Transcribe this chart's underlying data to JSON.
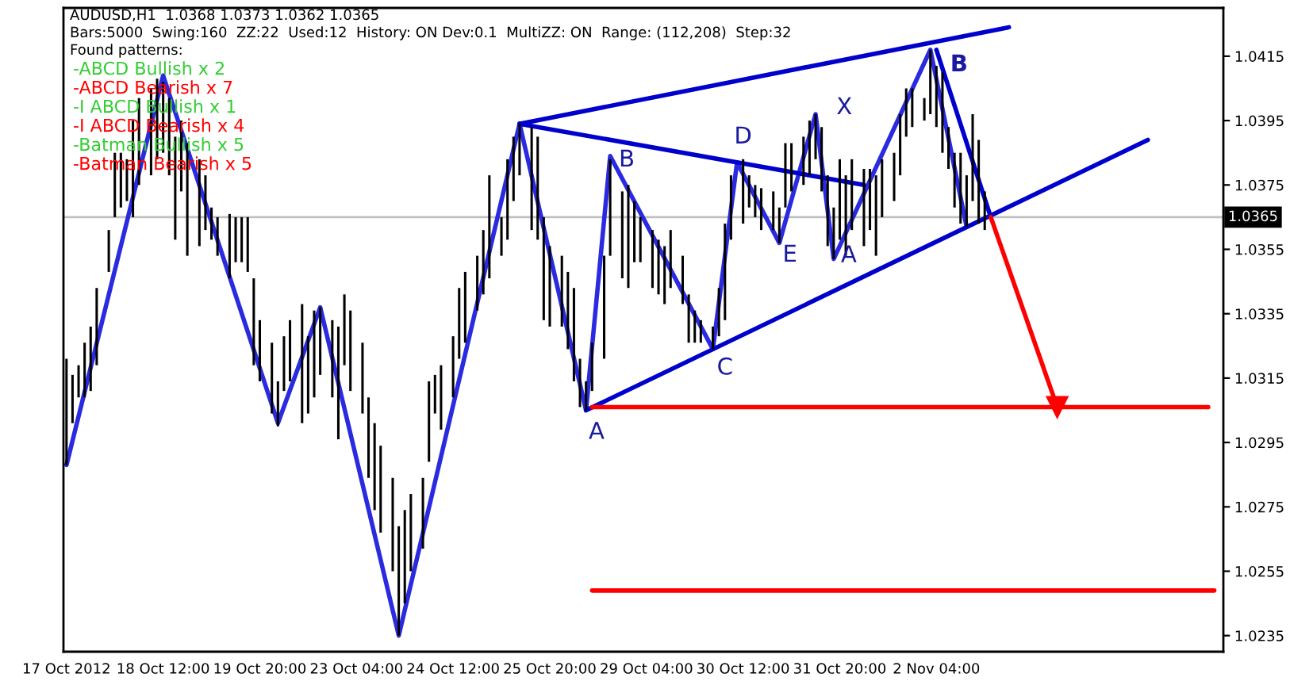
{
  "chart_data": {
    "type": "bar",
    "annotations": [
      "AUDUSD,H1  1.0368 1.0373 1.0362 1.0365",
      "Bars:5000  Swing:160  ZZ:22  Used:12  History: ON Dev:0.1  MultiZZ: ON  Range: (112,208)  Step:32",
      "Found patterns:",
      "-ABCD Bullish x 2",
      "-ABCD Bearish x 7",
      "-I ABCD Bullish x 1",
      "-I ABCD Bearish x 4",
      "-Batman Bullish x 5",
      "-Batman Bearish x 5",
      {
        "text": "A",
        "y": 1.0305
      },
      "B",
      {
        "text": "C",
        "y": 1.0324
      },
      {
        "text": "D",
        "y": 1.0382
      },
      "E",
      "X",
      {
        "text": "A",
        "y": 1.0352
      },
      "B"
    ],
    "categories": [
      "17 Oct 2012",
      null,
      null,
      null,
      null,
      null,
      null,
      null,
      null,
      null,
      null,
      null,
      null,
      null,
      null,
      null,
      "18 Oct 12:00",
      null,
      null,
      null,
      null,
      null,
      null,
      null,
      null,
      null,
      null,
      null,
      null,
      null,
      null,
      null,
      "19 Oct 20:00",
      null,
      null,
      null,
      null,
      null,
      null,
      null,
      null,
      null,
      null,
      null,
      null,
      null,
      null,
      null,
      "23 Oct 04:00",
      null,
      null,
      null,
      null,
      null,
      null,
      null,
      null,
      null,
      null,
      null,
      null,
      null,
      null,
      null,
      "24 Oct 12:00",
      null,
      null,
      null,
      null,
      null,
      null,
      null,
      null,
      null,
      null,
      null,
      null,
      null,
      null,
      null,
      "25 Oct 20:00",
      null,
      null,
      null,
      null,
      null,
      null,
      null,
      null,
      null,
      null,
      null,
      null,
      null,
      null,
      null,
      "29 Oct 04:00",
      null,
      null,
      null,
      null,
      null,
      null,
      null,
      null,
      null,
      null,
      null,
      null,
      null,
      null,
      null,
      "30 Oct 12:00",
      null,
      null,
      null,
      null,
      null,
      null,
      null,
      null,
      null,
      null,
      null,
      null,
      null,
      null,
      null,
      "31 Oct 20:00",
      null,
      null,
      null,
      null,
      null,
      null,
      null,
      null,
      null,
      null,
      null,
      null,
      null,
      null,
      null,
      "2 Nov 04:00",
      null,
      null,
      null,
      null,
      null,
      null,
      null,
      null,
      null,
      null,
      null,
      null,
      null,
      null,
      null,
      null,
      null,
      null,
      null,
      null,
      null,
      null,
      null,
      null,
      null,
      null,
      null,
      null,
      null,
      null,
      null,
      null,
      null,
      null,
      null,
      null,
      null,
      null,
      null,
      null,
      null,
      null,
      null,
      null,
      null,
      null,
      null
    ],
    "ylim": [
      1.023,
      1.043
    ],
    "yticks": [
      1.0235,
      1.0255,
      1.0275,
      1.0295,
      1.0315,
      1.0335,
      1.0355,
      1.0375,
      1.0395,
      1.0415
    ],
    "ref_lines": [
      {
        "axis": "y",
        "value": 1.0365,
        "label": "1.0365",
        "color": "#c0c0c0"
      }
    ],
    "series": [
      {
        "color": "#000000",
        "base": [
          1.0288,
          1.0301,
          1.0309,
          1.0309,
          1.0311,
          1.0319,
          null,
          1.0348,
          1.0365,
          1.0368,
          1.037,
          1.0365,
          1.0375,
          null,
          1.0378,
          1.0383,
          1.0385,
          1.0378,
          1.0358,
          1.0373,
          1.0353,
          null,
          1.0356,
          1.0361,
          1.0358,
          1.0353,
          null,
          1.0346,
          1.0351,
          1.0351,
          1.0348,
          1.0319,
          1.0314,
          null,
          1.0304,
          1.03,
          1.0311,
          1.0314,
          null,
          1.0301,
          1.0304,
          1.0309,
          1.0316,
          null,
          1.0309,
          1.0296,
          1.0319,
          1.0311,
          null,
          1.0304,
          1.0284,
          1.0274,
          1.0267,
          null,
          1.0255,
          1.0235,
          1.0245,
          1.0255,
          null,
          1.0262,
          1.0289,
          1.0304,
          1.0299,
          null,
          1.0309,
          1.0321,
          1.0326,
          null,
          1.0336,
          1.0341,
          1.0346,
          null,
          1.0353,
          1.0358,
          1.037,
          1.0378,
          null,
          1.0361,
          1.0358,
          1.0333,
          1.0331,
          null,
          1.0331,
          1.0324,
          1.0314,
          1.0306,
          1.0305,
          1.0311,
          null,
          1.0321,
          1.0353,
          null,
          1.0346,
          1.0343,
          1.0351,
          1.0351,
          null,
          1.0343,
          1.0341,
          1.0338,
          1.0343,
          null,
          1.0338,
          1.0326,
          1.0326,
          1.0326,
          null,
          1.0324,
          1.0328,
          1.0333,
          1.0358,
          null,
          1.0363,
          1.0368,
          1.0365,
          1.0361,
          null,
          1.0361,
          1.0357,
          1.0368,
          1.0373,
          null,
          1.0375,
          1.0378,
          1.0383,
          1.0373,
          1.0356,
          1.0352,
          1.0358,
          1.0353,
          1.0361,
          null,
          1.0356,
          1.0361,
          1.0353,
          1.0365,
          null,
          1.037,
          1.0378,
          1.039,
          1.0393,
          null,
          1.0395,
          1.0397,
          1.0393,
          1.0385,
          1.038,
          1.0368,
          1.0363,
          1.0362,
          1.037,
          1.0363,
          1.0361,
          null,
          null,
          null,
          null,
          null,
          null,
          null,
          null,
          null,
          null,
          null,
          null,
          null,
          null,
          null,
          null,
          null,
          null,
          null,
          null,
          null,
          null,
          null,
          null,
          null,
          null,
          null,
          null,
          null,
          null,
          null,
          null,
          null,
          null,
          null,
          null,
          null,
          null,
          null
        ],
        "values": [
          0.0033,
          0.0015,
          0.001,
          0.0017,
          0.002,
          0.0024,
          null,
          0.0013,
          0.002,
          0.0017,
          0.0013,
          0.003,
          0.0027,
          null,
          0.0027,
          0.0025,
          0.0022,
          0.0024,
          0.0032,
          0.0022,
          0.0035,
          null,
          0.0027,
          0.0017,
          0.001,
          0.0012,
          null,
          0.002,
          0.0014,
          0.0014,
          0.0017,
          0.0027,
          0.0019,
          null,
          0.0022,
          0.0014,
          0.0017,
          0.0019,
          null,
          0.0037,
          0.0024,
          0.0027,
          0.0021,
          null,
          0.0024,
          0.0035,
          0.0022,
          0.0025,
          null,
          0.0022,
          0.0025,
          0.0027,
          0.0027,
          null,
          0.0029,
          0.0034,
          0.0029,
          0.0024,
          null,
          0.0022,
          0.0025,
          0.0012,
          0.002,
          null,
          0.0019,
          0.0022,
          0.0022,
          null,
          0.0017,
          0.002,
          0.0032,
          null,
          0.0012,
          0.0025,
          0.002,
          0.0016,
          null,
          0.0032,
          0.0032,
          0.0032,
          0.0025,
          null,
          0.0022,
          0.0024,
          0.0029,
          0.0015,
          0.0009,
          0.0015,
          null,
          0.0032,
          0.003,
          null,
          0.0027,
          0.0032,
          0.0019,
          0.0014,
          null,
          0.0018,
          0.0017,
          0.0018,
          0.0018,
          null,
          0.0015,
          0.0015,
          0.001,
          0.0007,
          null,
          0.0007,
          0.0015,
          0.003,
          0.002,
          null,
          0.002,
          0.001,
          0.001,
          0.0013,
          null,
          0.0012,
          0.0011,
          0.002,
          0.0015,
          null,
          0.0015,
          0.0017,
          0.0014,
          0.002,
          0.0022,
          0.0016,
          0.0025,
          0.0025,
          0.0022,
          null,
          0.0024,
          0.0019,
          0.0025,
          0.0018,
          null,
          0.0015,
          0.0019,
          0.0015,
          0.0012,
          null,
          0.0007,
          0.002,
          0.0019,
          0.0025,
          0.0013,
          0.0017,
          0.0022,
          0.0016,
          0.0027,
          0.0026,
          0.0012,
          null,
          null,
          null,
          null,
          null,
          null,
          null,
          null,
          null,
          null,
          null,
          null,
          null,
          null,
          null,
          null,
          null,
          null,
          null,
          null,
          null,
          null,
          null,
          null,
          null,
          null,
          null,
          null,
          null,
          null,
          null,
          null,
          null,
          null,
          null,
          null,
          null,
          null,
          null
        ]
      },
      {
        "type": "line",
        "color": "#2a2ae0",
        "values": [
          1.0288,
          null,
          null,
          null,
          null,
          null,
          null,
          null,
          null,
          null,
          null,
          null,
          null,
          null,
          null,
          null,
          1.0409,
          null,
          null,
          null,
          null,
          null,
          null,
          null,
          null,
          null,
          null,
          null,
          null,
          null,
          null,
          null,
          null,
          null,
          null,
          1.0301,
          null,
          null,
          null,
          null,
          null,
          null,
          1.0337,
          null,
          null,
          null,
          null,
          null,
          null,
          null,
          null,
          null,
          null,
          null,
          null,
          1.0235,
          null,
          null,
          null,
          null,
          null,
          null,
          null,
          null,
          null,
          null,
          null,
          null,
          null,
          null,
          null,
          null,
          null,
          null,
          null,
          1.0394,
          null,
          null,
          null,
          null,
          null,
          null,
          null,
          null,
          null,
          null,
          1.0305,
          null,
          null,
          null,
          1.0384,
          null,
          null,
          null,
          null,
          null,
          null,
          null,
          null,
          null,
          null,
          null,
          null,
          null,
          null,
          null,
          null,
          1.0324,
          null,
          null,
          null,
          1.0382,
          null,
          null,
          null,
          null,
          null,
          null,
          1.0357,
          null,
          null,
          null,
          null,
          null,
          1.0397,
          null,
          null,
          1.0352,
          null,
          null,
          null,
          null,
          null,
          null,
          null,
          null,
          null,
          null,
          null,
          null,
          null,
          null,
          null,
          1.0417,
          null,
          null,
          null,
          null,
          null,
          1.0362,
          null,
          null,
          null,
          null,
          null,
          null,
          null,
          null,
          null,
          null,
          null,
          null,
          null,
          null,
          null,
          null,
          null,
          null,
          null,
          null,
          null,
          null,
          null,
          null,
          null,
          null,
          null,
          null,
          null,
          null,
          null,
          null,
          null,
          null,
          null,
          null,
          null,
          null,
          null,
          null,
          null,
          null
        ]
      },
      {
        "type": "line",
        "color": "#0000cc",
        "values": [
          null,
          null,
          null,
          null,
          null,
          null,
          null,
          null,
          null,
          null,
          null,
          null,
          null,
          null,
          null,
          null,
          null,
          null,
          null,
          null,
          null,
          null,
          null,
          null,
          null,
          null,
          null,
          null,
          null,
          null,
          null,
          null,
          null,
          null,
          null,
          null,
          null,
          null,
          null,
          null,
          null,
          null,
          null,
          null,
          null,
          null,
          null,
          null,
          null,
          null,
          null,
          null,
          null,
          null,
          null,
          null,
          null,
          null,
          null,
          null,
          null,
          null,
          null,
          null,
          null,
          null,
          null,
          null,
          null,
          null,
          null,
          null,
          null,
          null,
          null,
          1.0394,
          null,
          null,
          null,
          null,
          null,
          null,
          null,
          null,
          null,
          null,
          null,
          null,
          null,
          null,
          null,
          null,
          null,
          null,
          null,
          null,
          null,
          null,
          null,
          null,
          null,
          null,
          null,
          null,
          null,
          null,
          null,
          null,
          null,
          null,
          null,
          null,
          null,
          null,
          null,
          null,
          null,
          null,
          null,
          null,
          null,
          null,
          null,
          null,
          null,
          null,
          null,
          null,
          null,
          null,
          null,
          null,
          null,
          null,
          null,
          null,
          null,
          null,
          null,
          null,
          null,
          null,
          null,
          null,
          null,
          null,
          null,
          null,
          null,
          null,
          null,
          null,
          null,
          null,
          null,
          null,
          1.0424,
          null,
          null,
          null,
          null,
          null,
          null,
          null,
          null,
          null,
          null,
          null,
          null,
          null,
          null,
          null,
          null,
          null,
          null,
          null,
          null,
          null,
          null,
          null,
          null,
          null,
          null,
          null,
          null,
          null,
          null,
          null,
          null,
          null,
          null,
          null
        ]
      },
      {
        "type": "line",
        "color": "#0000cc",
        "values": [
          null,
          null,
          null,
          null,
          null,
          null,
          null,
          null,
          null,
          null,
          null,
          null,
          null,
          null,
          null,
          null,
          null,
          null,
          null,
          null,
          null,
          null,
          null,
          null,
          null,
          null,
          null,
          null,
          null,
          null,
          null,
          null,
          null,
          null,
          null,
          null,
          null,
          null,
          null,
          null,
          null,
          null,
          null,
          null,
          null,
          null,
          null,
          null,
          null,
          null,
          null,
          null,
          null,
          null,
          null,
          null,
          null,
          null,
          null,
          null,
          null,
          null,
          null,
          null,
          null,
          null,
          null,
          null,
          null,
          null,
          null,
          null,
          null,
          null,
          null,
          1.0394,
          null,
          null,
          null,
          null,
          null,
          null,
          null,
          null,
          null,
          null,
          null,
          null,
          null,
          null,
          null,
          null,
          null,
          null,
          null,
          null,
          null,
          null,
          null,
          null,
          null,
          null,
          null,
          null,
          null,
          null,
          null,
          null,
          null,
          null,
          null,
          null,
          null,
          null,
          null,
          null,
          null,
          null,
          null,
          null,
          null,
          null,
          null,
          null,
          null,
          null,
          null,
          null,
          null,
          null,
          null,
          null,
          1.0375,
          null,
          null,
          null,
          null,
          null,
          null,
          null,
          null,
          null,
          null,
          null,
          null,
          null,
          null,
          null,
          null,
          null,
          null,
          null,
          null,
          null,
          null,
          null,
          null,
          null,
          null,
          null,
          null,
          null,
          null,
          null,
          null,
          null,
          null,
          null,
          null,
          null,
          null,
          null,
          null,
          null,
          null,
          null,
          null,
          null,
          null,
          null,
          null,
          null,
          null,
          null,
          null,
          null,
          null,
          null,
          null,
          null,
          null,
          null
        ]
      },
      {
        "type": "line",
        "color": "#0000cc",
        "values": [
          null,
          null,
          null,
          null,
          null,
          null,
          null,
          null,
          null,
          null,
          null,
          null,
          null,
          null,
          null,
          null,
          null,
          null,
          null,
          null,
          null,
          null,
          null,
          null,
          null,
          null,
          null,
          null,
          null,
          null,
          null,
          null,
          null,
          null,
          null,
          null,
          null,
          null,
          null,
          null,
          null,
          null,
          null,
          null,
          null,
          null,
          null,
          null,
          null,
          null,
          null,
          null,
          null,
          null,
          null,
          null,
          null,
          null,
          null,
          null,
          null,
          null,
          null,
          null,
          null,
          null,
          null,
          null,
          null,
          null,
          null,
          null,
          null,
          null,
          null,
          null,
          null,
          null,
          null,
          null,
          null,
          null,
          null,
          null,
          null,
          null,
          1.0305,
          null,
          null,
          null,
          null,
          null,
          null,
          null,
          null,
          null,
          null,
          null,
          null,
          null,
          null,
          null,
          null,
          null,
          null,
          null,
          null,
          null,
          null,
          null,
          null,
          null,
          null,
          null,
          null,
          null,
          null,
          null,
          null,
          null,
          null,
          null,
          null,
          null,
          null,
          null,
          null,
          null,
          null,
          null,
          null,
          null,
          null,
          null,
          null,
          null,
          null,
          null,
          null,
          null,
          null,
          null,
          null,
          null,
          null,
          null,
          null,
          null,
          null,
          null,
          null,
          null,
          null,
          null,
          null,
          null,
          null,
          null,
          null,
          null,
          null,
          null,
          null,
          null,
          null,
          null,
          null,
          null,
          null,
          null,
          null,
          null,
          null,
          null,
          null,
          null,
          null,
          null,
          null,
          1.0389,
          null,
          null,
          null,
          null,
          null,
          null,
          null,
          null,
          null,
          null,
          null,
          null
        ]
      },
      {
        "type": "line",
        "color": "#0000cc",
        "values": [
          null,
          null,
          null,
          null,
          null,
          null,
          null,
          null,
          null,
          null,
          null,
          null,
          null,
          null,
          null,
          null,
          null,
          null,
          null,
          null,
          null,
          null,
          null,
          null,
          null,
          null,
          null,
          null,
          null,
          null,
          null,
          null,
          null,
          null,
          null,
          null,
          null,
          null,
          null,
          null,
          null,
          null,
          null,
          null,
          null,
          null,
          null,
          null,
          null,
          null,
          null,
          null,
          null,
          null,
          null,
          null,
          null,
          null,
          null,
          null,
          null,
          null,
          null,
          null,
          null,
          null,
          null,
          null,
          null,
          null,
          null,
          null,
          null,
          null,
          null,
          null,
          null,
          null,
          null,
          null,
          null,
          null,
          null,
          null,
          null,
          null,
          null,
          null,
          null,
          null,
          null,
          null,
          null,
          null,
          null,
          null,
          null,
          null,
          null,
          null,
          null,
          null,
          null,
          null,
          null,
          null,
          null,
          null,
          null,
          null,
          null,
          null,
          null,
          null,
          null,
          null,
          null,
          null,
          null,
          null,
          null,
          null,
          null,
          null,
          null,
          null,
          null,
          null,
          null,
          null,
          null,
          null,
          null,
          null,
          null,
          null,
          null,
          null,
          null,
          null,
          null,
          null,
          null,
          null,
          1.0417,
          null,
          null,
          null,
          null,
          null,
          null,
          null,
          null,
          1.0365,
          null,
          null,
          null,
          null,
          null,
          null,
          null,
          null,
          null,
          null,
          null,
          null,
          null,
          null,
          null,
          null,
          null,
          null,
          null,
          null,
          null,
          null,
          null,
          null,
          null,
          null,
          null,
          null,
          null,
          null,
          null,
          null,
          null,
          null,
          null,
          null,
          null,
          null
        ]
      },
      {
        "type": "line",
        "color": "#ff0000",
        "marker": "triangle",
        "values": [
          null,
          null,
          null,
          null,
          null,
          null,
          null,
          null,
          null,
          null,
          null,
          null,
          null,
          null,
          null,
          null,
          null,
          null,
          null,
          null,
          null,
          null,
          null,
          null,
          null,
          null,
          null,
          null,
          null,
          null,
          null,
          null,
          null,
          null,
          null,
          null,
          null,
          null,
          null,
          null,
          null,
          null,
          null,
          null,
          null,
          null,
          null,
          null,
          null,
          null,
          null,
          null,
          null,
          null,
          null,
          null,
          null,
          null,
          null,
          null,
          null,
          null,
          null,
          null,
          null,
          null,
          null,
          null,
          null,
          null,
          null,
          null,
          null,
          null,
          null,
          null,
          null,
          null,
          null,
          null,
          null,
          null,
          null,
          null,
          null,
          null,
          null,
          null,
          null,
          null,
          null,
          null,
          null,
          null,
          null,
          null,
          null,
          null,
          null,
          null,
          null,
          null,
          null,
          null,
          null,
          null,
          null,
          null,
          null,
          null,
          null,
          null,
          null,
          null,
          null,
          null,
          null,
          null,
          null,
          null,
          null,
          null,
          null,
          null,
          null,
          null,
          null,
          null,
          null,
          null,
          null,
          null,
          null,
          null,
          null,
          null,
          null,
          null,
          null,
          null,
          null,
          null,
          null,
          null,
          null,
          null,
          null,
          null,
          null,
          null,
          null,
          null,
          null,
          1.0365,
          null,
          null,
          null,
          null,
          null,
          null,
          null,
          null,
          null,
          null,
          1.0306,
          null,
          null,
          null,
          null,
          null,
          null,
          null,
          null,
          null,
          null,
          null,
          null,
          null,
          null,
          null,
          null,
          null,
          null,
          null,
          null,
          null,
          null,
          null,
          null,
          null,
          null,
          null
        ]
      },
      {
        "type": "line",
        "color": "#ff0000",
        "values": [
          null,
          null,
          null,
          null,
          null,
          null,
          null,
          null,
          null,
          null,
          null,
          null,
          null,
          null,
          null,
          null,
          null,
          null,
          null,
          null,
          null,
          null,
          null,
          null,
          null,
          null,
          null,
          null,
          null,
          null,
          null,
          null,
          null,
          null,
          null,
          null,
          null,
          null,
          null,
          null,
          null,
          null,
          null,
          null,
          null,
          null,
          null,
          null,
          null,
          null,
          null,
          null,
          null,
          null,
          null,
          null,
          null,
          null,
          null,
          null,
          null,
          null,
          null,
          null,
          null,
          null,
          null,
          null,
          null,
          null,
          null,
          null,
          null,
          null,
          null,
          null,
          null,
          null,
          null,
          null,
          null,
          null,
          null,
          null,
          null,
          null,
          null,
          1.0306,
          null,
          null,
          null,
          null,
          null,
          null,
          null,
          null,
          null,
          null,
          null,
          null,
          null,
          null,
          null,
          null,
          null,
          null,
          null,
          null,
          null,
          null,
          null,
          null,
          null,
          null,
          null,
          null,
          null,
          null,
          null,
          null,
          null,
          null,
          null,
          null,
          null,
          null,
          null,
          null,
          null,
          null,
          null,
          null,
          null,
          null,
          null,
          null,
          null,
          null,
          null,
          null,
          null,
          null,
          null,
          null,
          null,
          null,
          null,
          null,
          null,
          null,
          null,
          null,
          null,
          null,
          null,
          null,
          null,
          null,
          null,
          null,
          null,
          null,
          null,
          null,
          null,
          null,
          null,
          null,
          null,
          null,
          null,
          null,
          null,
          null,
          null,
          null,
          null,
          null,
          null,
          null,
          null,
          null,
          null,
          null,
          null,
          null,
          null,
          null,
          null,
          1.0306,
          null,
          null
        ]
      },
      {
        "type": "line",
        "color": "#ff0000",
        "values": [
          null,
          null,
          null,
          null,
          null,
          null,
          null,
          null,
          null,
          null,
          null,
          null,
          null,
          null,
          null,
          null,
          null,
          null,
          null,
          null,
          null,
          null,
          null,
          null,
          null,
          null,
          null,
          null,
          null,
          null,
          null,
          null,
          null,
          null,
          null,
          null,
          null,
          null,
          null,
          null,
          null,
          null,
          null,
          null,
          null,
          null,
          null,
          null,
          null,
          null,
          null,
          null,
          null,
          null,
          null,
          null,
          null,
          null,
          null,
          null,
          null,
          null,
          null,
          null,
          null,
          null,
          null,
          null,
          null,
          null,
          null,
          null,
          null,
          null,
          null,
          null,
          null,
          null,
          null,
          null,
          null,
          null,
          null,
          null,
          null,
          null,
          null,
          1.0249,
          null,
          null,
          null,
          null,
          null,
          null,
          null,
          null,
          null,
          null,
          null,
          null,
          null,
          null,
          null,
          null,
          null,
          null,
          null,
          null,
          null,
          null,
          null,
          null,
          null,
          null,
          null,
          null,
          null,
          null,
          null,
          null,
          null,
          null,
          null,
          null,
          null,
          null,
          null,
          null,
          null,
          null,
          null,
          null,
          null,
          null,
          null,
          null,
          null,
          null,
          null,
          null,
          null,
          null,
          null,
          null,
          null,
          null,
          null,
          null,
          null,
          null,
          null,
          null,
          null,
          null,
          null,
          null,
          null,
          null,
          null,
          null,
          null,
          null,
          null,
          null,
          null,
          null,
          null,
          null,
          null,
          null,
          null,
          null,
          null,
          null,
          null,
          null,
          null,
          null,
          null,
          null,
          null,
          null,
          null,
          null,
          null,
          null,
          null,
          null,
          null,
          null,
          1.0249,
          null
        ]
      }
    ]
  }
}
